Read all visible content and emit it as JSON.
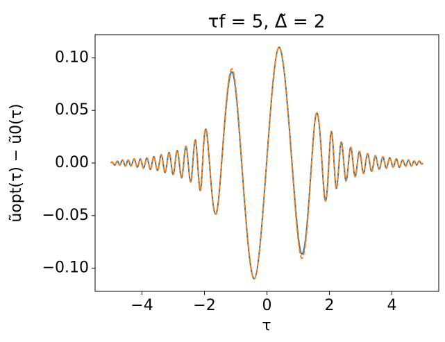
{
  "chart_data": {
    "type": "line",
    "title": "τf = 5,  Δ̃ = 2",
    "x_label": "τ",
    "y_label": "ũopt(τ) − ũ0(τ)",
    "x": [
      -5.0,
      -4.95,
      -4.87,
      -4.79,
      -4.71,
      -4.62,
      -4.53,
      -4.44,
      -4.35,
      -4.25,
      -4.15,
      -4.05,
      -3.95,
      -3.84,
      -3.73,
      -3.62,
      -3.5,
      -3.38,
      -3.26,
      -3.13,
      -3.0,
      -2.87,
      -2.73,
      -2.59,
      -2.44,
      -2.29,
      -2.13,
      -1.95,
      -1.62,
      -1.1,
      -0.4,
      0.38,
      1.1,
      1.58,
      1.87,
      2.06,
      2.22,
      2.38,
      2.53,
      2.68,
      2.82,
      2.96,
      3.09,
      3.22,
      3.35,
      3.47,
      3.59,
      3.71,
      3.82,
      3.93,
      4.04,
      4.14,
      4.24,
      4.34,
      4.44,
      4.53,
      4.62,
      4.71,
      4.79,
      4.87,
      4.95,
      5.0
    ],
    "series": [
      {
        "color": "#1f77b4",
        "dashed": false,
        "values": [
          0,
          0.001,
          -0.002,
          0.002,
          -0.002,
          0.003,
          -0.003,
          0.003,
          -0.003,
          0.004,
          -0.004,
          0.004,
          -0.005,
          0.005,
          -0.006,
          0.006,
          -0.007,
          0.008,
          -0.009,
          0.01,
          -0.011,
          0.012,
          -0.014,
          0.016,
          -0.018,
          0.022,
          -0.026,
          0.032,
          -0.048,
          0.086,
          -0.11,
          0.11,
          -0.086,
          0.047,
          -0.036,
          0.03,
          -0.024,
          0.02,
          -0.017,
          0.015,
          -0.013,
          0.011,
          -0.01,
          0.009,
          -0.008,
          0.007,
          -0.006,
          0.006,
          -0.005,
          0.005,
          -0.004,
          0.004,
          -0.004,
          0.003,
          -0.003,
          0.003,
          -0.003,
          0.002,
          -0.002,
          0.002,
          -0.001,
          0
        ]
      },
      {
        "color": "#ff7f0e",
        "dashed": true,
        "values": [
          0,
          0.001,
          -0.002,
          0.002,
          -0.002,
          0.003,
          -0.003,
          0.003,
          -0.003,
          0.004,
          -0.004,
          0.004,
          -0.005,
          0.005,
          -0.006,
          0.006,
          -0.007,
          0.008,
          -0.009,
          0.01,
          -0.011,
          0.012,
          -0.014,
          0.016,
          -0.018,
          0.022,
          -0.026,
          0.032,
          -0.048,
          0.089,
          -0.11,
          0.11,
          -0.09,
          0.047,
          -0.036,
          0.03,
          -0.024,
          0.02,
          -0.017,
          0.015,
          -0.013,
          0.011,
          -0.01,
          0.009,
          -0.008,
          0.007,
          -0.006,
          0.006,
          -0.005,
          0.005,
          -0.004,
          0.004,
          -0.004,
          0.003,
          -0.003,
          0.003,
          -0.003,
          0.002,
          -0.002,
          0.002,
          -0.001,
          0
        ]
      }
    ],
    "xlim": [
      -5.5,
      5.5
    ],
    "ylim": [
      -0.122,
      0.122
    ],
    "xticks": [
      {
        "value": -4,
        "label": "−4"
      },
      {
        "value": -2,
        "label": "−2"
      },
      0,
      2,
      4
    ],
    "yticks": [
      {
        "value": -0.1,
        "label": "−0.10"
      },
      {
        "value": -0.05,
        "label": "−0.05"
      },
      {
        "value": 0,
        "label": "0.00"
      },
      {
        "value": 0.05,
        "label": "0.05"
      },
      {
        "value": 0.1,
        "label": "0.10"
      }
    ],
    "grid": false
  }
}
